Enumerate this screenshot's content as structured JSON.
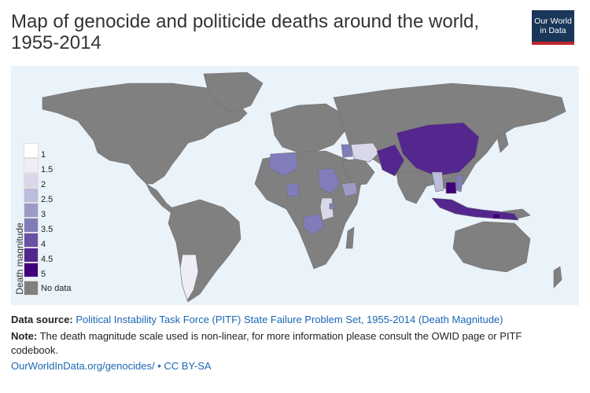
{
  "header": {
    "title": "Map of genocide and politicide deaths around the world, 1955-2014",
    "logo_line1": "Our World",
    "logo_line2": "in Data"
  },
  "legend": {
    "title": "Death magnitude",
    "items": [
      {
        "label": "1",
        "color": "#ffffff"
      },
      {
        "label": "1.5",
        "color": "#eeedf5"
      },
      {
        "label": "2",
        "color": "#d9d8ea"
      },
      {
        "label": "2.5",
        "color": "#bcbcdc"
      },
      {
        "label": "3",
        "color": "#9e9ac8"
      },
      {
        "label": "3.5",
        "color": "#807dba"
      },
      {
        "label": "4",
        "color": "#6a51a3"
      },
      {
        "label": "4.5",
        "color": "#54278f"
      },
      {
        "label": "5",
        "color": "#3f007d"
      },
      {
        "label": "No data",
        "color": "#808080"
      }
    ]
  },
  "map": {
    "ocean_color": "#eaf2fa",
    "land_color": "#808080",
    "regions": [
      {
        "name": "Argentina/Chile",
        "magnitude": 1.5
      },
      {
        "name": "Central Africa",
        "magnitude": 3.5
      },
      {
        "name": "Sudan",
        "magnitude": 3.5
      },
      {
        "name": "China",
        "magnitude": 4.5
      },
      {
        "name": "Pakistan/Afghanistan",
        "magnitude": 4.5
      },
      {
        "name": "Cambodia",
        "magnitude": 5
      },
      {
        "name": "Indonesia",
        "magnitude": 4.5
      },
      {
        "name": "Iran",
        "magnitude": 2
      },
      {
        "name": "Uganda",
        "magnitude": 2
      },
      {
        "name": "Algeria",
        "magnitude": 3.5
      }
    ]
  },
  "footer": {
    "source_label": "Data source:",
    "source_text": "Political Instability Task Force (PITF) State Failure Problem Set, 1955-2014 (Death Magnitude)",
    "note_label": "Note:",
    "note_text": "The death magnitude scale used is non-linear, for more information please consult the OWID page or PITF codebook.",
    "url": "OurWorldInData.org/genocides/",
    "license": "• CC BY-SA"
  }
}
